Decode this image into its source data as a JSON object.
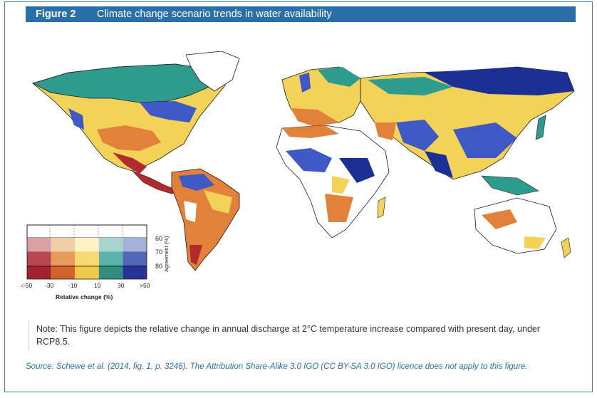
{
  "figure": {
    "number": "Figure 2",
    "title": "Climate change scenario trends in water availability"
  },
  "legend": {
    "x_ticks": [
      "<-50",
      "-30",
      "-10",
      "10",
      "30",
      ">50"
    ],
    "x_label": "Relative change (%)",
    "y_ticks": [
      "60",
      "70",
      "80"
    ],
    "y_label": "Agreement (%)",
    "palette": {
      "row_60": [
        "#d8a2a5",
        "#f1cfa6",
        "#fdf2c4",
        "#a7d6d0",
        "#a4b1d8"
      ],
      "row_70": [
        "#b8474f",
        "#e79a5a",
        "#f7da72",
        "#5cb3a9",
        "#5168b8"
      ],
      "row_80": [
        "#a3222d",
        "#d4622b",
        "#f0c94a",
        "#328c80",
        "#27329a"
      ]
    }
  },
  "map_colors": {
    "strong_wet": "#1c2f95",
    "mid_wet": "#3f59c4",
    "teal": "#2f9b8e",
    "yellow": "#f3d25a",
    "orange": "#e2823a",
    "red": "#b12a2d",
    "border": "#1a1a1a"
  },
  "note": "Note: This figure depicts the relative change in annual discharge at 2°C temperature increase compared with present day, under RCP8.5.",
  "source": "Source: Schewe et al. (2014, fig. 1, p. 3246). The Attribution Share-Alike 3.0 IGO (CC BY-SA 3.0 IGO) licence does not apply to this figure."
}
